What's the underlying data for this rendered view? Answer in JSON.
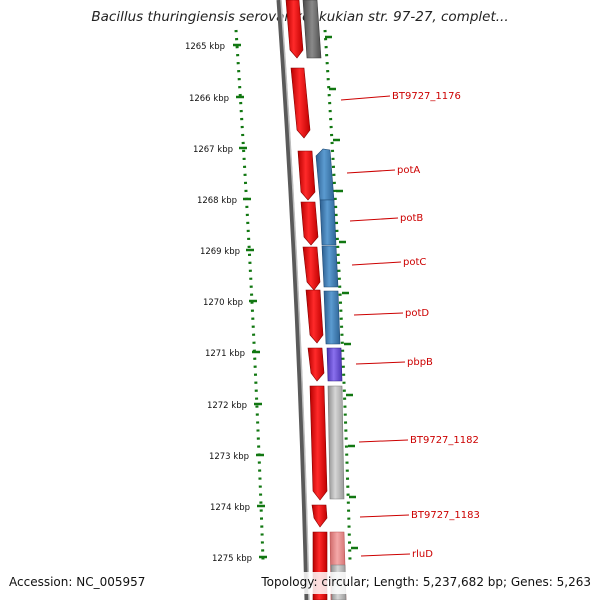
{
  "title": "Bacillus thuringiensis serovar konkukian str. 97-27, complet...",
  "footer": {
    "accession": "Accession: NC_005957",
    "summary": "Topology: circular; Length: 5,237,682 bp; Genes: 5,263"
  },
  "colors": {
    "forward_gene": "#ee0000",
    "pot_operon": "#3a78b0",
    "pbpB": "#6a4fd0",
    "reverse_gray": "#b4b4b4",
    "rluD": "#e98a8a",
    "gene_label": "#cc0000",
    "tick": "#117711"
  },
  "scale_labels": [
    "1265 kbp",
    "1266 kbp",
    "1267 kbp",
    "1268 kbp",
    "1269 kbp",
    "1270 kbp",
    "1271 kbp",
    "1272 kbp",
    "1273 kbp",
    "1274 kbp",
    "1275 kbp"
  ],
  "gene_labels": [
    "BT9727_1176",
    "potA",
    "potB",
    "potC",
    "potD",
    "pbpB",
    "BT9727_1182",
    "BT9727_1183",
    "rluD"
  ]
}
